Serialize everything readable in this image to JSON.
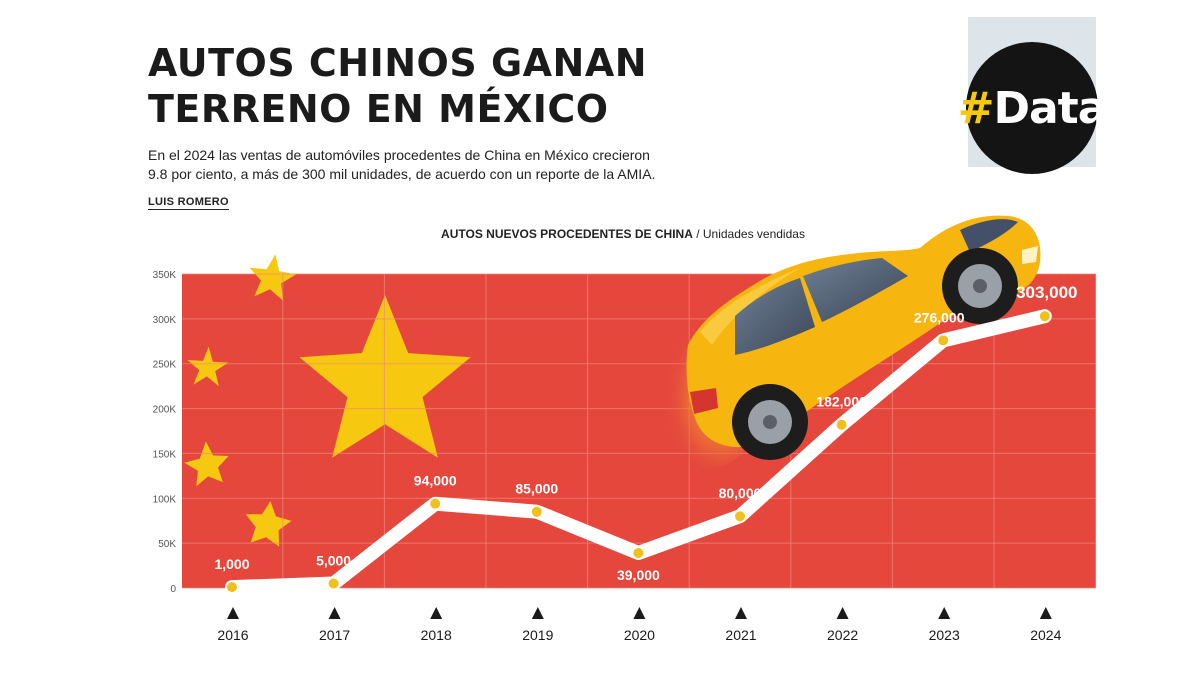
{
  "header": {
    "title_line1": "AUTOS CHINOS GANAN",
    "title_line2": "TERRENO EN MÉXICO",
    "subtitle_line1": "En el 2024 las ventas de automóviles procedentes de China en México crecieron",
    "subtitle_line2": "9.8 por ciento, a más de 300 mil unidades, de acuerdo con un reporte de la AMIA.",
    "byline": "LUIS ROMERO",
    "badge_hash": "#",
    "badge_word": "Data"
  },
  "chart_data": {
    "type": "line",
    "title_bold": "AUTOS NUEVOS PROCEDENTES DE CHINA",
    "title_separator": " / ",
    "title_unit": "Unidades vendidas",
    "x": [
      "2016",
      "2017",
      "2018",
      "2019",
      "2020",
      "2021",
      "2022",
      "2023",
      "2024"
    ],
    "values": [
      1000,
      5000,
      94000,
      85000,
      39000,
      80000,
      182000,
      276000,
      303000
    ],
    "data_labels": [
      "1,000",
      "5,000",
      "94,000",
      "85,000",
      "39,000",
      "80,000",
      "182,000",
      "276,000",
      "303,000"
    ],
    "ylim": [
      0,
      350000
    ],
    "yticks": [
      0,
      50000,
      100000,
      150000,
      200000,
      250000,
      300000,
      350000
    ],
    "ytick_labels": [
      "0",
      "50K",
      "100K",
      "150K",
      "200K",
      "250K",
      "300K",
      "350K"
    ],
    "grid": true,
    "background": "china-flag",
    "colors": {
      "flag_red": "#e5473d",
      "star_yellow": "#f6c80f",
      "line": "#ffffff",
      "marker": "#f2c01a",
      "car_body": "#f6b50f"
    }
  }
}
